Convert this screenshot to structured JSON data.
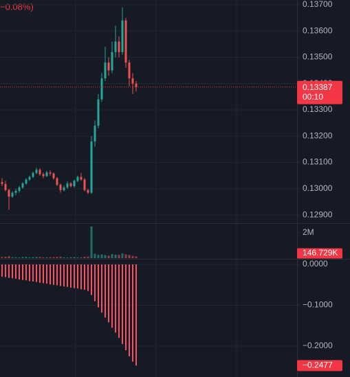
{
  "chart_data": [
    {
      "type": "candlestick",
      "subtitle": "−0.08%)",
      "countdown": "00:10",
      "up_color": "#26a69a",
      "down_color": "#ef5350",
      "price_line_color": "#f23645",
      "open": [
        0.13025,
        0.13018,
        0.12995,
        0.1297,
        0.12985,
        0.12992,
        0.13005,
        0.1302,
        0.13035,
        0.13045,
        0.1306,
        0.13072,
        0.13055,
        0.13048,
        0.13062,
        0.13058,
        0.1304,
        0.13015,
        0.12995,
        0.13005,
        0.1302,
        0.1301,
        0.1303,
        0.13045,
        0.13035,
        0.12995,
        0.12985,
        0.1318,
        0.1324,
        0.1334,
        0.1342,
        0.1348,
        0.1345,
        0.1352,
        0.1356,
        0.1352,
        0.1364,
        0.1348,
        0.1342,
        0.134
      ],
      "high": [
        0.1304,
        0.1303,
        0.13,
        0.1299,
        0.13,
        0.1301,
        0.13025,
        0.1304,
        0.1305,
        0.13065,
        0.1308,
        0.13078,
        0.13062,
        0.13068,
        0.1307,
        0.13062,
        0.13045,
        0.1302,
        0.13012,
        0.13028,
        0.13025,
        0.13035,
        0.1305,
        0.1306,
        0.1304,
        0.13,
        0.132,
        0.1326,
        0.1336,
        0.1344,
        0.1354,
        0.135,
        0.1356,
        0.1362,
        0.1358,
        0.1369,
        0.1365,
        0.1349,
        0.1344,
        0.1341
      ],
      "low": [
        0.1301,
        0.1299,
        0.1292,
        0.12965,
        0.12975,
        0.12985,
        0.13,
        0.13015,
        0.1303,
        0.1304,
        0.13055,
        0.1305,
        0.1304,
        0.13045,
        0.1305,
        0.13035,
        0.1301,
        0.12985,
        0.1299,
        0.13,
        0.13005,
        0.13005,
        0.13025,
        0.1303,
        0.1299,
        0.1298,
        0.1298,
        0.1316,
        0.1323,
        0.1333,
        0.1341,
        0.1343,
        0.1344,
        0.135,
        0.135,
        0.1351,
        0.1346,
        0.1339,
        0.1336,
        0.1337
      ],
      "close": [
        0.13018,
        0.12995,
        0.1297,
        0.12985,
        0.12992,
        0.13005,
        0.1302,
        0.13035,
        0.13045,
        0.1306,
        0.13072,
        0.13055,
        0.13048,
        0.13062,
        0.13058,
        0.1304,
        0.13015,
        0.12995,
        0.13005,
        0.1302,
        0.1301,
        0.1303,
        0.13045,
        0.13035,
        0.12995,
        0.12985,
        0.1318,
        0.1324,
        0.1334,
        0.1342,
        0.1348,
        0.1345,
        0.1352,
        0.1356,
        0.1352,
        0.1364,
        0.1348,
        0.1342,
        0.134,
        0.13387
      ],
      "ylim": [
        0.12869,
        0.13718
      ],
      "yticks": [
        {
          "value": 0.137,
          "label": "0.13700"
        },
        {
          "value": 0.136,
          "label": "0.13600"
        },
        {
          "value": 0.135,
          "label": "0.13500"
        },
        {
          "value": 0.134,
          "label": "0.13400"
        },
        {
          "value": 0.133,
          "label": "0.13300"
        },
        {
          "value": 0.132,
          "label": "0.13200"
        },
        {
          "value": 0.131,
          "label": "0.13100"
        },
        {
          "value": 0.13,
          "label": "0.13000"
        },
        {
          "value": 0.129,
          "label": "0.12900"
        }
      ],
      "grid": true
    },
    {
      "type": "volume",
      "values": [
        90000,
        120000,
        150000,
        80000,
        70000,
        60000,
        90000,
        110000,
        70000,
        80000,
        100000,
        90000,
        60000,
        70000,
        80000,
        90000,
        100000,
        120000,
        70000,
        60000,
        80000,
        90000,
        70000,
        60000,
        110000,
        130000,
        2500000,
        350000,
        280000,
        300000,
        250000,
        200000,
        320000,
        280000,
        260000,
        380000,
        300000,
        250000,
        180000,
        146729
      ],
      "value_labels": [
        null,
        null,
        null,
        null,
        null,
        null,
        null,
        null,
        null,
        null,
        null,
        null,
        null,
        null,
        null,
        null,
        null,
        null,
        null,
        null,
        null,
        null,
        null,
        null,
        null,
        null,
        null,
        null,
        null,
        null,
        null,
        null,
        null,
        null,
        null,
        null,
        null,
        null,
        null,
        "146.729K"
      ],
      "ylim": [
        0,
        2650000
      ],
      "yticks": [
        {
          "value": 2000000,
          "label": "2M"
        }
      ]
    },
    {
      "type": "bar",
      "color": "#f7525f",
      "values": [
        -0.03,
        -0.031,
        -0.033,
        -0.034,
        -0.035,
        -0.037,
        -0.038,
        -0.039,
        -0.041,
        -0.042,
        -0.043,
        -0.045,
        -0.046,
        -0.047,
        -0.049,
        -0.05,
        -0.051,
        -0.053,
        -0.054,
        -0.055,
        -0.057,
        -0.058,
        -0.059,
        -0.061,
        -0.062,
        -0.065,
        -0.075,
        -0.09,
        -0.105,
        -0.118,
        -0.13,
        -0.142,
        -0.155,
        -0.167,
        -0.18,
        -0.195,
        -0.21,
        -0.225,
        -0.238,
        -0.2477
      ],
      "value_labels": [
        null,
        null,
        null,
        null,
        null,
        null,
        null,
        null,
        null,
        null,
        null,
        null,
        null,
        null,
        null,
        null,
        null,
        null,
        null,
        null,
        null,
        null,
        null,
        null,
        null,
        null,
        null,
        null,
        null,
        null,
        null,
        null,
        null,
        null,
        null,
        null,
        null,
        null,
        null,
        "−0.2477"
      ],
      "ylim": [
        -0.2756,
        0.0118
      ],
      "yticks": [
        {
          "value": 0,
          "label": "0.0000"
        },
        {
          "value": -0.1,
          "label": "−0.1000"
        },
        {
          "value": -0.2,
          "label": "−0.2000"
        }
      ],
      "grid": true
    }
  ]
}
